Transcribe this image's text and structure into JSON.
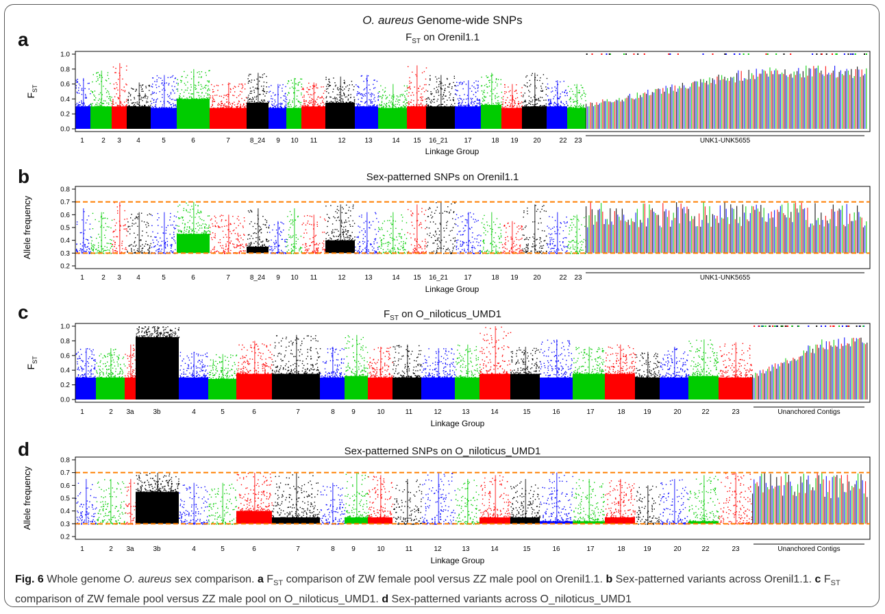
{
  "figure": {
    "title_italic": "O. aureus",
    "title_rest": " Genome-wide SNPs",
    "caption": {
      "label": "Fig. 6",
      "intro_pre": " Whole genome ",
      "intro_italic": "O. aureus",
      "intro_post": " sex comparison. ",
      "a_letter": "a",
      "a_text_pre": " F",
      "a_sub": "ST",
      "a_text_post": " comparison of ZW female pool versus ZZ male pool on Orenil1.1. ",
      "b_letter": "b",
      "b_text": " Sex-patterned variants across Orenil1.1. ",
      "c_letter": "c",
      "c_text_pre": " F",
      "c_sub": "ST",
      "c_text_post": " comparison of ZW female pool versus ZZ male pool on O_niloticus_UMD1. ",
      "d_letter": "d",
      "d_text": " Sex-patterned variants across O_niloticus_UMD1"
    }
  },
  "colors": {
    "blue": "#0000ff",
    "green": "#00cc00",
    "red": "#ff0000",
    "black": "#000000",
    "threshold": "#ff7f00"
  },
  "chart_data": [
    {
      "panel": "a",
      "type": "scatter",
      "title": "FST  on Orenil1.1",
      "title_main": "F",
      "title_sub": "ST",
      "title_rest": "  on Orenil1.1",
      "xlabel": "Linkage Group",
      "ylabel": "F",
      "ylabel_sub": "ST",
      "ylim": [
        0.0,
        1.0
      ],
      "yticks": [
        0.0,
        0.2,
        0.4,
        0.6,
        0.8,
        1.0
      ],
      "ytick_labels": [
        "0.0",
        "0.2",
        "0.4",
        "0.6",
        "0.8",
        "1.0"
      ],
      "threshold_lines": [],
      "grid": false,
      "groups": [
        {
          "label": "1",
          "color": "blue",
          "base": 0.3,
          "peak": 0.68
        },
        {
          "label": "2",
          "color": "green",
          "base": 0.3,
          "peak": 0.78
        },
        {
          "label": "3",
          "color": "red",
          "base": 0.3,
          "peak": 0.88
        },
        {
          "label": "4",
          "color": "black",
          "base": 0.3,
          "peak": 0.62
        },
        {
          "label": "5",
          "color": "blue",
          "base": 0.28,
          "peak": 0.72
        },
        {
          "label": "6",
          "color": "green",
          "base": 0.4,
          "peak": 0.8
        },
        {
          "label": "7",
          "color": "red",
          "base": 0.28,
          "peak": 0.62
        },
        {
          "label": "8_24",
          "color": "black",
          "base": 0.35,
          "peak": 0.75
        },
        {
          "label": "9",
          "color": "blue",
          "base": 0.28,
          "peak": 0.6
        },
        {
          "label": "10",
          "color": "green",
          "base": 0.28,
          "peak": 0.68
        },
        {
          "label": "11",
          "color": "red",
          "base": 0.3,
          "peak": 0.62
        },
        {
          "label": "12",
          "color": "black",
          "base": 0.35,
          "peak": 0.7
        },
        {
          "label": "13",
          "color": "blue",
          "base": 0.3,
          "peak": 0.72
        },
        {
          "label": "14",
          "color": "green",
          "base": 0.28,
          "peak": 0.6
        },
        {
          "label": "15",
          "color": "red",
          "base": 0.3,
          "peak": 0.85
        },
        {
          "label": "16_21",
          "color": "black",
          "base": 0.3,
          "peak": 0.72
        },
        {
          "label": "17",
          "color": "blue",
          "base": 0.3,
          "peak": 0.65
        },
        {
          "label": "18",
          "color": "green",
          "base": 0.32,
          "peak": 0.75
        },
        {
          "label": "19",
          "color": "red",
          "base": 0.28,
          "peak": 0.6
        },
        {
          "label": "20",
          "color": "black",
          "base": 0.3,
          "peak": 0.75
        },
        {
          "label": "22",
          "color": "blue",
          "base": 0.3,
          "peak": 0.65
        },
        {
          "label": "23",
          "color": "green",
          "base": 0.28,
          "peak": 0.6
        }
      ],
      "unanchored_label": "UNK1-UNK5655"
    },
    {
      "panel": "b",
      "type": "scatter",
      "title": "Sex-patterned SNPs on Orenil1.1",
      "title_main": "Sex-patterned SNPs on Orenil1.1",
      "title_sub": "",
      "title_rest": "",
      "xlabel": "Linkage Group",
      "ylabel": "Allele frequency",
      "ylabel_sub": "",
      "ylim": [
        0.2,
        0.8
      ],
      "yticks": [
        0.2,
        0.3,
        0.4,
        0.5,
        0.6,
        0.7,
        0.8
      ],
      "ytick_labels": [
        "0.2",
        "0.3",
        "0.4",
        "0.5",
        "0.6",
        "0.7",
        "0.8"
      ],
      "threshold_lines": [
        0.3,
        0.7
      ],
      "grid": false,
      "groups": [
        {
          "label": "1",
          "color": "blue",
          "base": 0.3,
          "peak": 0.65
        },
        {
          "label": "2",
          "color": "green",
          "base": 0.3,
          "peak": 0.62
        },
        {
          "label": "3",
          "color": "red",
          "base": 0.3,
          "peak": 0.7
        },
        {
          "label": "4",
          "color": "black",
          "base": 0.3,
          "peak": 0.62
        },
        {
          "label": "5",
          "color": "blue",
          "base": 0.3,
          "peak": 0.62
        },
        {
          "label": "6",
          "color": "green",
          "base": 0.45,
          "peak": 0.7
        },
        {
          "label": "7",
          "color": "red",
          "base": 0.3,
          "peak": 0.6
        },
        {
          "label": "8_24",
          "color": "black",
          "base": 0.35,
          "peak": 0.65
        },
        {
          "label": "9",
          "color": "blue",
          "base": 0.3,
          "peak": 0.55
        },
        {
          "label": "10",
          "color": "green",
          "base": 0.3,
          "peak": 0.65
        },
        {
          "label": "11",
          "color": "red",
          "base": 0.3,
          "peak": 0.6
        },
        {
          "label": "12",
          "color": "black",
          "base": 0.4,
          "peak": 0.68
        },
        {
          "label": "13",
          "color": "blue",
          "base": 0.3,
          "peak": 0.62
        },
        {
          "label": "14",
          "color": "green",
          "base": 0.3,
          "peak": 0.62
        },
        {
          "label": "15",
          "color": "red",
          "base": 0.3,
          "peak": 0.68
        },
        {
          "label": "16_21",
          "color": "black",
          "base": 0.3,
          "peak": 0.7
        },
        {
          "label": "17",
          "color": "blue",
          "base": 0.3,
          "peak": 0.62
        },
        {
          "label": "18",
          "color": "green",
          "base": 0.3,
          "peak": 0.62
        },
        {
          "label": "19",
          "color": "red",
          "base": 0.3,
          "peak": 0.55
        },
        {
          "label": "20",
          "color": "black",
          "base": 0.3,
          "peak": 0.68
        },
        {
          "label": "22",
          "color": "blue",
          "base": 0.3,
          "peak": 0.62
        },
        {
          "label": "23",
          "color": "green",
          "base": 0.3,
          "peak": 0.6
        }
      ],
      "unanchored_label": "UNK1-UNK5655"
    },
    {
      "panel": "c",
      "type": "scatter",
      "title": "FST  on O_niloticus_UMD1",
      "title_main": "F",
      "title_sub": "ST",
      "title_rest": "  on O_niloticus_UMD1",
      "xlabel": "Linkage Group",
      "ylabel": "F",
      "ylabel_sub": "ST",
      "ylim": [
        0.0,
        1.0
      ],
      "yticks": [
        0.0,
        0.2,
        0.4,
        0.6,
        0.8,
        1.0
      ],
      "ytick_labels": [
        "0.0",
        "0.2",
        "0.4",
        "0.6",
        "0.8",
        "1.0"
      ],
      "threshold_lines": [],
      "grid": false,
      "groups": [
        {
          "label": "1",
          "color": "blue",
          "base": 0.3,
          "peak": 0.7
        },
        {
          "label": "2",
          "color": "green",
          "base": 0.3,
          "peak": 0.7
        },
        {
          "label": "3a",
          "color": "red",
          "base": 0.3,
          "peak": 0.75
        },
        {
          "label": "3b",
          "color": "black",
          "base": 0.85,
          "peak": 1.0
        },
        {
          "label": "4",
          "color": "blue",
          "base": 0.3,
          "peak": 0.65
        },
        {
          "label": "5",
          "color": "green",
          "base": 0.28,
          "peak": 0.62
        },
        {
          "label": "6",
          "color": "red",
          "base": 0.35,
          "peak": 0.8
        },
        {
          "label": "7",
          "color": "black",
          "base": 0.35,
          "peak": 0.88
        },
        {
          "label": "8",
          "color": "blue",
          "base": 0.3,
          "peak": 0.72
        },
        {
          "label": "9",
          "color": "green",
          "base": 0.32,
          "peak": 0.88
        },
        {
          "label": "10",
          "color": "red",
          "base": 0.3,
          "peak": 0.72
        },
        {
          "label": "11",
          "color": "black",
          "base": 0.3,
          "peak": 0.75
        },
        {
          "label": "12",
          "color": "blue",
          "base": 0.3,
          "peak": 0.7
        },
        {
          "label": "13",
          "color": "green",
          "base": 0.3,
          "peak": 0.75
        },
        {
          "label": "14",
          "color": "red",
          "base": 0.35,
          "peak": 1.0
        },
        {
          "label": "15",
          "color": "black",
          "base": 0.35,
          "peak": 0.72
        },
        {
          "label": "16",
          "color": "blue",
          "base": 0.3,
          "peak": 0.82
        },
        {
          "label": "17",
          "color": "green",
          "base": 0.35,
          "peak": 0.72
        },
        {
          "label": "18",
          "color": "red",
          "base": 0.35,
          "peak": 0.75
        },
        {
          "label": "19",
          "color": "black",
          "base": 0.3,
          "peak": 0.65
        },
        {
          "label": "20",
          "color": "blue",
          "base": 0.3,
          "peak": 0.72
        },
        {
          "label": "22",
          "color": "green",
          "base": 0.32,
          "peak": 0.82
        },
        {
          "label": "23",
          "color": "red",
          "base": 0.3,
          "peak": 0.78
        }
      ],
      "unanchored_label": "Unanchored Contigs"
    },
    {
      "panel": "d",
      "type": "scatter",
      "title": "Sex-patterned SNPs on O_niloticus_UMD1",
      "title_main": "Sex-patterned SNPs on O_niloticus_UMD1",
      "title_sub": "",
      "title_rest": "",
      "xlabel": "Linkage Group",
      "ylabel": "Allele frequency",
      "ylabel_sub": "",
      "ylim": [
        0.2,
        0.8
      ],
      "yticks": [
        0.2,
        0.3,
        0.4,
        0.5,
        0.6,
        0.7,
        0.8
      ],
      "ytick_labels": [
        "0.2",
        "0.3",
        "0.4",
        "0.5",
        "0.6",
        "0.7",
        "0.8"
      ],
      "threshold_lines": [
        0.3,
        0.7
      ],
      "grid": false,
      "groups": [
        {
          "label": "1",
          "color": "blue",
          "base": 0.3,
          "peak": 0.65
        },
        {
          "label": "2",
          "color": "green",
          "base": 0.3,
          "peak": 0.65
        },
        {
          "label": "3a",
          "color": "red",
          "base": 0.3,
          "peak": 0.65
        },
        {
          "label": "3b",
          "color": "black",
          "base": 0.55,
          "peak": 0.7
        },
        {
          "label": "4",
          "color": "blue",
          "base": 0.3,
          "peak": 0.62
        },
        {
          "label": "5",
          "color": "green",
          "base": 0.3,
          "peak": 0.62
        },
        {
          "label": "6",
          "color": "red",
          "base": 0.4,
          "peak": 0.7
        },
        {
          "label": "7",
          "color": "black",
          "base": 0.35,
          "peak": 0.7
        },
        {
          "label": "8",
          "color": "blue",
          "base": 0.3,
          "peak": 0.62
        },
        {
          "label": "9",
          "color": "green",
          "base": 0.35,
          "peak": 0.7
        },
        {
          "label": "10",
          "color": "red",
          "base": 0.35,
          "peak": 0.68
        },
        {
          "label": "11",
          "color": "black",
          "base": 0.3,
          "peak": 0.65
        },
        {
          "label": "12",
          "color": "blue",
          "base": 0.3,
          "peak": 0.7
        },
        {
          "label": "13",
          "color": "green",
          "base": 0.3,
          "peak": 0.65
        },
        {
          "label": "14",
          "color": "red",
          "base": 0.35,
          "peak": 0.68
        },
        {
          "label": "15",
          "color": "black",
          "base": 0.35,
          "peak": 0.65
        },
        {
          "label": "16",
          "color": "blue",
          "base": 0.32,
          "peak": 0.7
        },
        {
          "label": "17",
          "color": "green",
          "base": 0.32,
          "peak": 0.65
        },
        {
          "label": "18",
          "color": "red",
          "base": 0.35,
          "peak": 0.65
        },
        {
          "label": "19",
          "color": "black",
          "base": 0.3,
          "peak": 0.6
        },
        {
          "label": "20",
          "color": "blue",
          "base": 0.3,
          "peak": 0.65
        },
        {
          "label": "22",
          "color": "green",
          "base": 0.32,
          "peak": 0.68
        },
        {
          "label": "23",
          "color": "red",
          "base": 0.3,
          "peak": 0.7
        }
      ],
      "unanchored_label": "Unanchored Contigs"
    }
  ]
}
